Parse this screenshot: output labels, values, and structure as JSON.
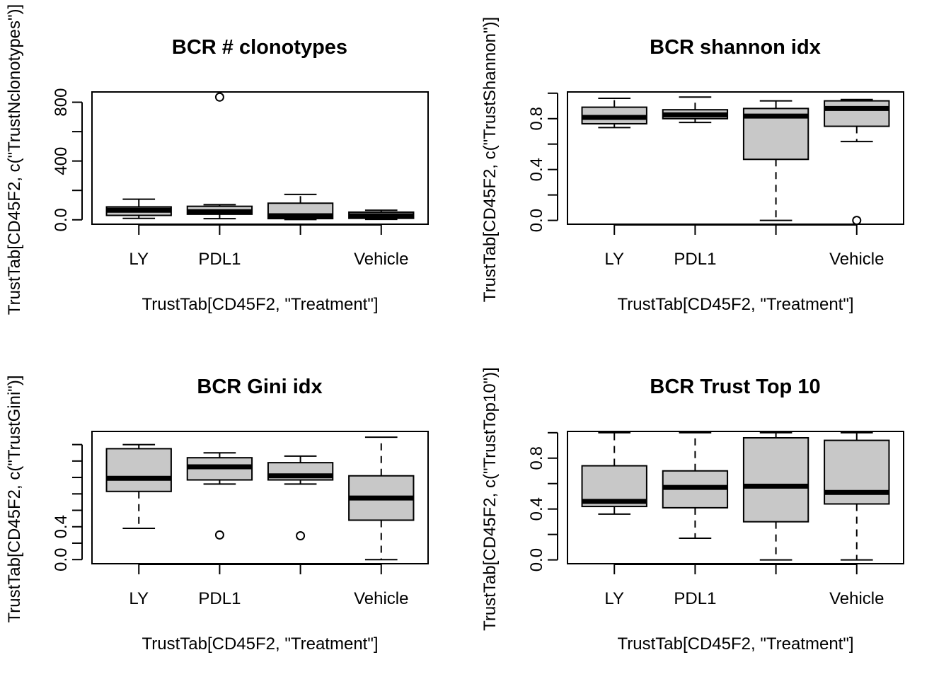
{
  "chart_data": [
    {
      "type": "box",
      "title": "BCR # clonotypes",
      "xlabel": "TrustTab[CD45F2, \"Treatment\"]",
      "ylabel": "TrustTab[CD45F2, c(\"TrustNclonotypes\")]",
      "categories": [
        "LY",
        "PDL1",
        "",
        "Vehicle"
      ],
      "ylim": [
        -30,
        870
      ],
      "yticks": [
        0,
        400,
        800
      ],
      "boxes": [
        {
          "category": "LY",
          "min": 10,
          "q1": 30,
          "median": 65,
          "q3": 88,
          "max": 140,
          "outliers": []
        },
        {
          "category": "PDL1",
          "min": 8,
          "q1": 38,
          "median": 55,
          "q3": 92,
          "max": 103,
          "outliers": [
            835
          ]
        },
        {
          "category": "",
          "min": 2,
          "q1": 8,
          "median": 28,
          "q3": 113,
          "max": 173,
          "outliers": []
        },
        {
          "category": "Vehicle",
          "min": 3,
          "q1": 10,
          "median": 28,
          "q3": 52,
          "max": 65,
          "outliers": []
        }
      ]
    },
    {
      "type": "box",
      "title": "BCR shannon idx",
      "xlabel": "TrustTab[CD45F2, \"Treatment\"]",
      "ylabel": "TrustTab[CD45F2, c(\"TrustShannon\")]",
      "categories": [
        "LY",
        "PDL1",
        "",
        "Vehicle"
      ],
      "ylim": [
        -0.03,
        1.01
      ],
      "yticks": [
        0.0,
        0.4,
        0.8
      ],
      "boxes": [
        {
          "category": "LY",
          "min": 0.73,
          "q1": 0.76,
          "median": 0.81,
          "q3": 0.89,
          "max": 0.96,
          "outliers": []
        },
        {
          "category": "PDL1",
          "min": 0.77,
          "q1": 0.8,
          "median": 0.83,
          "q3": 0.87,
          "max": 0.97,
          "outliers": []
        },
        {
          "category": "",
          "min": 0.0,
          "q1": 0.48,
          "median": 0.82,
          "q3": 0.88,
          "max": 0.94,
          "outliers": []
        },
        {
          "category": "Vehicle",
          "min": 0.62,
          "q1": 0.74,
          "median": 0.88,
          "q3": 0.94,
          "max": 0.95,
          "outliers": [
            0.0
          ]
        }
      ]
    },
    {
      "type": "box",
      "title": "BCR Gini idx",
      "xlabel": "TrustTab[CD45F2, \"Treatment\"]",
      "ylabel": "TrustTab[CD45F2, c(\"TrustGini\")]",
      "categories": [
        "LY",
        "PDL1",
        "",
        "Vehicle"
      ],
      "ylim": [
        -0.05,
        1.56
      ],
      "yticks": [
        0.0,
        0.4
      ],
      "boxes": [
        {
          "category": "LY",
          "min": 0.38,
          "q1": 0.83,
          "median": 0.99,
          "q3": 1.35,
          "max": 1.4,
          "outliers": []
        },
        {
          "category": "PDL1",
          "min": 0.92,
          "q1": 0.97,
          "median": 1.13,
          "q3": 1.24,
          "max": 1.3,
          "outliers": [
            0.3
          ]
        },
        {
          "category": "",
          "min": 0.92,
          "q1": 0.97,
          "median": 1.02,
          "q3": 1.18,
          "max": 1.26,
          "outliers": [
            0.29
          ]
        },
        {
          "category": "Vehicle",
          "min": 0.0,
          "q1": 0.48,
          "median": 0.75,
          "q3": 1.02,
          "max": 1.49,
          "outliers": []
        }
      ]
    },
    {
      "type": "box",
      "title": "BCR Trust Top 10",
      "xlabel": "TrustTab[CD45F2, \"Treatment\"]",
      "ylabel": "TrustTab[CD45F2, c(\"TrustTop10\")]",
      "categories": [
        "LY",
        "PDL1",
        "",
        "Vehicle"
      ],
      "ylim": [
        -0.03,
        1.01
      ],
      "yticks": [
        0.0,
        0.4,
        0.8
      ],
      "boxes": [
        {
          "category": "LY",
          "min": 0.36,
          "q1": 0.42,
          "median": 0.46,
          "q3": 0.74,
          "max": 1.0,
          "outliers": []
        },
        {
          "category": "PDL1",
          "min": 0.17,
          "q1": 0.41,
          "median": 0.57,
          "q3": 0.7,
          "max": 1.0,
          "outliers": []
        },
        {
          "category": "",
          "min": 0.0,
          "q1": 0.3,
          "median": 0.58,
          "q3": 0.96,
          "max": 1.0,
          "outliers": []
        },
        {
          "category": "Vehicle",
          "min": 0.0,
          "q1": 0.44,
          "median": 0.53,
          "q3": 0.94,
          "max": 1.0,
          "outliers": []
        }
      ]
    }
  ],
  "colors": {
    "box_fill": "#c8c8c8",
    "stroke": "#000000",
    "background": "#ffffff"
  }
}
